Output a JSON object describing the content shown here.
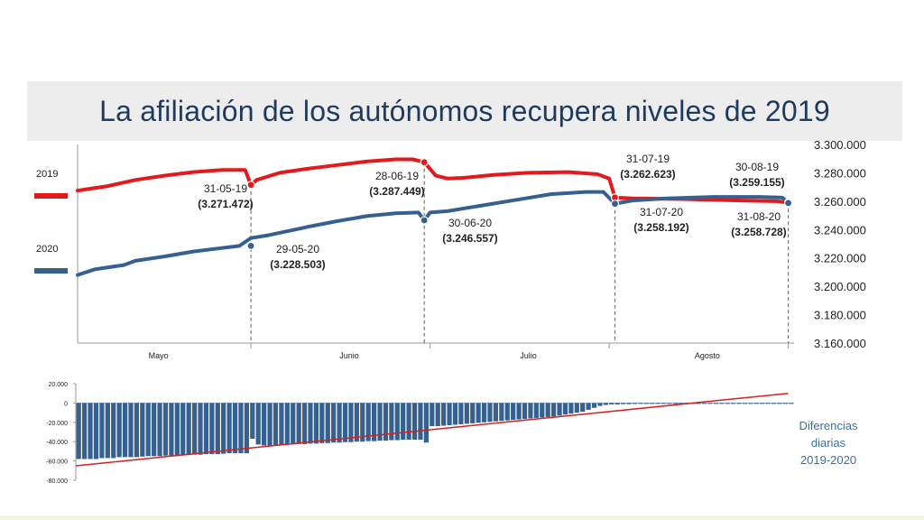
{
  "title": "La afiliación de los autónomos recupera niveles de 2019",
  "colors": {
    "s2019": "#e31a1c",
    "s2020": "#35608f",
    "trend": "#d62020",
    "axis": "#555555",
    "label_dark": "#222222",
    "note_blue": "#3a6fa8"
  },
  "legend": [
    {
      "name": "2019",
      "color": "#e31a1c"
    },
    {
      "name": "2020",
      "color": "#35608f"
    }
  ],
  "chart_data": [
    {
      "type": "line",
      "y_axis_position": "right",
      "ylim": [
        3160000,
        3300000
      ],
      "yticks": [
        "3.160.000",
        "3.180.000",
        "3.200.000",
        "3.220.000",
        "3.240.000",
        "3.260.000",
        "3.280.000",
        "3.300.000"
      ],
      "ytick_values": [
        3160000,
        3180000,
        3200000,
        3220000,
        3240000,
        3260000,
        3280000,
        3300000
      ],
      "x_range_days": [
        0,
        124
      ],
      "month_labels": [
        {
          "label": "Mayo",
          "center_day": 14
        },
        {
          "label": "Junio",
          "center_day": 47
        },
        {
          "label": "Julio",
          "center_day": 78
        },
        {
          "label": "Agosto",
          "center_day": 109
        }
      ],
      "month_dividers_day": [
        30,
        61,
        92,
        123
      ],
      "series": [
        {
          "name": "2019",
          "points": [
            [
              0,
              3267500
            ],
            [
              5,
              3270500
            ],
            [
              10,
              3275000
            ],
            [
              15,
              3278000
            ],
            [
              20,
              3280500
            ],
            [
              25,
              3282000
            ],
            [
              29,
              3282000
            ],
            [
              30,
              3271472
            ],
            [
              31,
              3275000
            ],
            [
              35,
              3280000
            ],
            [
              40,
              3283000
            ],
            [
              45,
              3285500
            ],
            [
              50,
              3288000
            ],
            [
              55,
              3289500
            ],
            [
              58,
              3289500
            ],
            [
              60,
              3287449
            ],
            [
              62,
              3278000
            ],
            [
              64,
              3276000
            ],
            [
              67,
              3276500
            ],
            [
              72,
              3278500
            ],
            [
              78,
              3280000
            ],
            [
              85,
              3280500
            ],
            [
              90,
              3279000
            ],
            [
              92,
              3276000
            ],
            [
              93,
              3262623
            ],
            [
              96,
              3262000
            ],
            [
              105,
              3261500
            ],
            [
              115,
              3260500
            ],
            [
              121,
              3260000
            ],
            [
              123,
              3259155
            ]
          ]
        },
        {
          "name": "2020",
          "points": [
            [
              0,
              3208000
            ],
            [
              3,
              3212000
            ],
            [
              8,
              3215000
            ],
            [
              10,
              3218000
            ],
            [
              15,
              3221000
            ],
            [
              20,
              3224500
            ],
            [
              25,
              3227000
            ],
            [
              28,
              3228503
            ],
            [
              30,
              3234000
            ],
            [
              33,
              3236000
            ],
            [
              40,
              3242000
            ],
            [
              45,
              3246000
            ],
            [
              50,
              3249500
            ],
            [
              55,
              3251500
            ],
            [
              59,
              3252000
            ],
            [
              60,
              3246557
            ],
            [
              61,
              3252000
            ],
            [
              64,
              3253000
            ],
            [
              70,
              3257000
            ],
            [
              76,
              3261000
            ],
            [
              82,
              3265000
            ],
            [
              88,
              3266500
            ],
            [
              91,
              3266500
            ],
            [
              93,
              3258192
            ],
            [
              96,
              3260500
            ],
            [
              102,
              3262000
            ],
            [
              110,
              3263000
            ],
            [
              118,
              3263000
            ],
            [
              122,
              3262500
            ],
            [
              123,
              3258728
            ]
          ]
        }
      ],
      "annotations": [
        {
          "date": "31-05-19",
          "value": "(3.271.472)",
          "series": "2019",
          "day": 30,
          "y": 3271472
        },
        {
          "date": "28-06-19",
          "value": "(3.287.449)",
          "series": "2019",
          "day": 60,
          "y": 3287449
        },
        {
          "date": "31-07-19",
          "value": "(3.262.623)",
          "series": "2019",
          "day": 93,
          "y": 3262623
        },
        {
          "date": "30-08-19",
          "value": "(3.259.155)",
          "series": "2019",
          "day": 123,
          "y": 3259155
        },
        {
          "date": "29-05-20",
          "value": "(3.228.503)",
          "series": "2020",
          "day": 30,
          "y": 3228503
        },
        {
          "date": "30-06-20",
          "value": "(3.246.557)",
          "series": "2020",
          "day": 60,
          "y": 3246557
        },
        {
          "date": "31-07-20",
          "value": "(3.258.192)",
          "series": "2020",
          "day": 93,
          "y": 3258192
        },
        {
          "date": "31-08-20",
          "value": "(3.258.728)",
          "series": "2020",
          "day": 123,
          "y": 3258728
        }
      ],
      "grid": false
    },
    {
      "type": "bar",
      "ylim": [
        -80000,
        20000
      ],
      "yticks": [
        "20.000",
        "0",
        "-20.000",
        "-40.000",
        "-60.000",
        "-80.000"
      ],
      "ytick_values": [
        20000,
        0,
        -20000,
        -40000,
        -60000,
        -80000
      ],
      "note_lines": [
        "Diferencias",
        "diarias",
        "2019-2020"
      ],
      "trendline": {
        "from": [
          0,
          -65000
        ],
        "to": [
          123,
          10000
        ]
      },
      "values": [
        -58000,
        -58000,
        -58000,
        -58000,
        -57000,
        -57000,
        -57000,
        -56000,
        -56000,
        -56000,
        -56000,
        -55500,
        -55000,
        -55000,
        -55000,
        -54500,
        -54500,
        -54000,
        -54000,
        -54000,
        -53500,
        -53500,
        -53000,
        -53000,
        -53000,
        -52500,
        -52000,
        -52000,
        -52000,
        -52000,
        -37000,
        -43000,
        -44000,
        -44000,
        -43500,
        -43500,
        -43000,
        -43000,
        -42500,
        -42500,
        -42000,
        -42000,
        -41500,
        -41500,
        -41000,
        -41000,
        -40500,
        -40500,
        -40000,
        -40000,
        -39500,
        -39500,
        -39000,
        -39000,
        -38500,
        -38500,
        -38000,
        -38000,
        -38000,
        -38000,
        -41000,
        -24000,
        -24000,
        -23500,
        -23000,
        -22500,
        -22000,
        -21500,
        -21000,
        -20500,
        -20000,
        -19500,
        -19000,
        -18500,
        -18000,
        -17500,
        -17000,
        -16500,
        -16000,
        -15500,
        -15000,
        -14500,
        -14000,
        -13000,
        -12000,
        -11000,
        -10000,
        -9000,
        -7000,
        -5000,
        -3000,
        -2000,
        -1500,
        -1500,
        -1200,
        -1200,
        -1000,
        -900,
        -800,
        -700,
        -600,
        -600,
        -500,
        -500,
        -500,
        -400,
        -400,
        -400,
        -300,
        -300,
        -300,
        -300,
        -300,
        -300,
        -400,
        -400,
        -400,
        -500,
        -500,
        -500,
        -500,
        -500,
        -500,
        -500
      ]
    }
  ]
}
